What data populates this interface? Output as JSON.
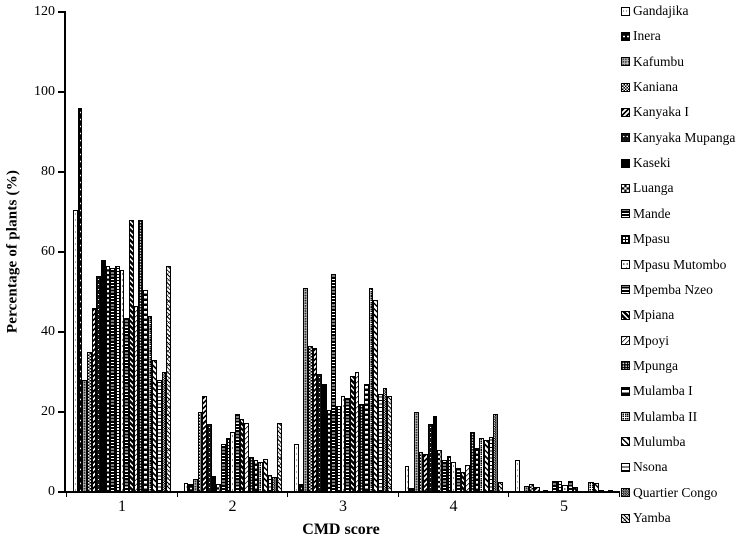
{
  "chart_data": {
    "type": "bar",
    "title": "",
    "xlabel": "CMD score",
    "ylabel": "Percentage of plants (%)",
    "ylim": [
      0,
      120
    ],
    "yticks": [
      0,
      20,
      40,
      60,
      80,
      100,
      120
    ],
    "categories": [
      "1",
      "2",
      "3",
      "4",
      "5"
    ],
    "grid": false,
    "legend_position": "right",
    "bar_colors": {
      "foreground": "#000000",
      "background": "#ffffff"
    },
    "series": [
      {
        "name": "Gandajika",
        "pattern": "white-speckle",
        "values": [
          70.5,
          2.2,
          12,
          6.5,
          8
        ]
      },
      {
        "name": "Inera",
        "pattern": "black-speckle",
        "values": [
          96,
          2,
          2,
          1,
          0
        ]
      },
      {
        "name": "Kafumbu",
        "pattern": "gray-speckle",
        "values": [
          28,
          3.2,
          51,
          20,
          1.5
        ]
      },
      {
        "name": "Kaniana",
        "pattern": "fine-checker",
        "values": [
          35,
          20,
          36.5,
          10,
          2
        ]
      },
      {
        "name": "Kanyaka I",
        "pattern": "diagonal-bold",
        "values": [
          46,
          24,
          36,
          9.5,
          1.2
        ]
      },
      {
        "name": "Kanyaka Mupanga",
        "pattern": "dark-speckle",
        "values": [
          54,
          17,
          29.5,
          17,
          0
        ]
      },
      {
        "name": "Kaseki",
        "pattern": "solid-black",
        "values": [
          58,
          4,
          27,
          19,
          0.5
        ]
      },
      {
        "name": "Luanga",
        "pattern": "coarse-checker",
        "values": [
          56.5,
          2,
          20.5,
          10.5,
          0
        ]
      },
      {
        "name": "Mande",
        "pattern": "dash-rows",
        "values": [
          56,
          12,
          54.5,
          8,
          2.8
        ]
      },
      {
        "name": "Mpasu",
        "pattern": "white-grid",
        "values": [
          56.5,
          13.5,
          21.5,
          9,
          2.8
        ]
      },
      {
        "name": "Mpasu Mutombo",
        "pattern": "sparse-marks",
        "values": [
          55.5,
          15,
          24,
          7.5,
          1.75
        ]
      },
      {
        "name": "Mpemba Nzeo",
        "pattern": "horiz-stripes-dark",
        "values": [
          43.5,
          19.5,
          23.5,
          6,
          2.8
        ]
      },
      {
        "name": "Mpiana",
        "pattern": "diag-stripes-dark",
        "values": [
          68,
          18.3,
          29,
          5,
          1.3
        ]
      },
      {
        "name": "Mpoyi",
        "pattern": "thin-diag",
        "values": [
          46.5,
          17.3,
          30,
          6.75,
          0
        ]
      },
      {
        "name": "Mpunga",
        "pattern": "black-dots",
        "values": [
          68,
          8.8,
          22,
          15,
          0
        ]
      },
      {
        "name": "Mulamba I",
        "pattern": "half-stripes",
        "values": [
          50.5,
          8,
          27,
          11,
          0
        ]
      },
      {
        "name": "Mulamba II",
        "pattern": "fine-grid-dark",
        "values": [
          44,
          7.6,
          51,
          13.5,
          2.6
        ]
      },
      {
        "name": "Mulumba",
        "pattern": "diag-dashes",
        "values": [
          33,
          8.2,
          48,
          13,
          2.2
        ]
      },
      {
        "name": "Nsona",
        "pattern": "horiz-lines",
        "values": [
          28,
          4.2,
          24.5,
          13.8,
          0.5
        ]
      },
      {
        "name": "Quartier Congo",
        "pattern": "dark-checker",
        "values": [
          30,
          3.8,
          26,
          19.5,
          0
        ]
      },
      {
        "name": "Yamba",
        "pattern": "diag-speckle",
        "values": [
          56.5,
          17.2,
          24,
          2.5,
          0.5
        ]
      }
    ]
  }
}
